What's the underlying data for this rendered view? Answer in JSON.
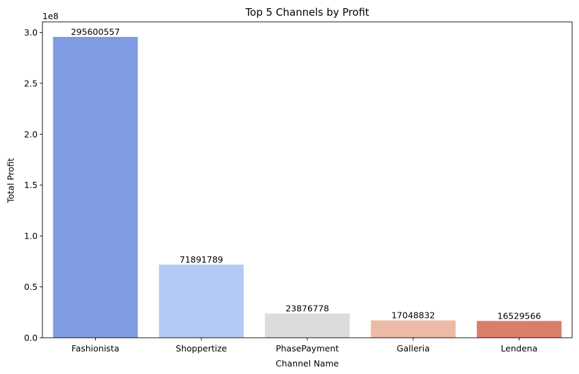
{
  "chart_data": {
    "type": "bar",
    "title": "Top 5 Channels by Profit",
    "xlabel": "Channel Name",
    "ylabel": "Total Profit",
    "y_offset_label": "1e8",
    "categories": [
      "Fashionista",
      "Shoppertize",
      "PhasePayment",
      "Galleria",
      "Lendena"
    ],
    "values": [
      295600557,
      71891789,
      23876778,
      17048832,
      16529566
    ],
    "data_labels": [
      "295600557",
      "71891789",
      "23876778",
      "17048832",
      "16529566"
    ],
    "colors": [
      "#7f9ce3",
      "#b4caf4",
      "#dddcdc",
      "#edbba5",
      "#d87e6b"
    ],
    "ylim": [
      0,
      310380585
    ],
    "y_ticks": [
      0,
      50000000,
      100000000,
      150000000,
      200000000,
      250000000,
      300000000
    ],
    "y_tick_labels": [
      "0.0",
      "0.5",
      "1.0",
      "1.5",
      "2.0",
      "2.5",
      "3.0"
    ],
    "grid": false,
    "legend": "none"
  }
}
